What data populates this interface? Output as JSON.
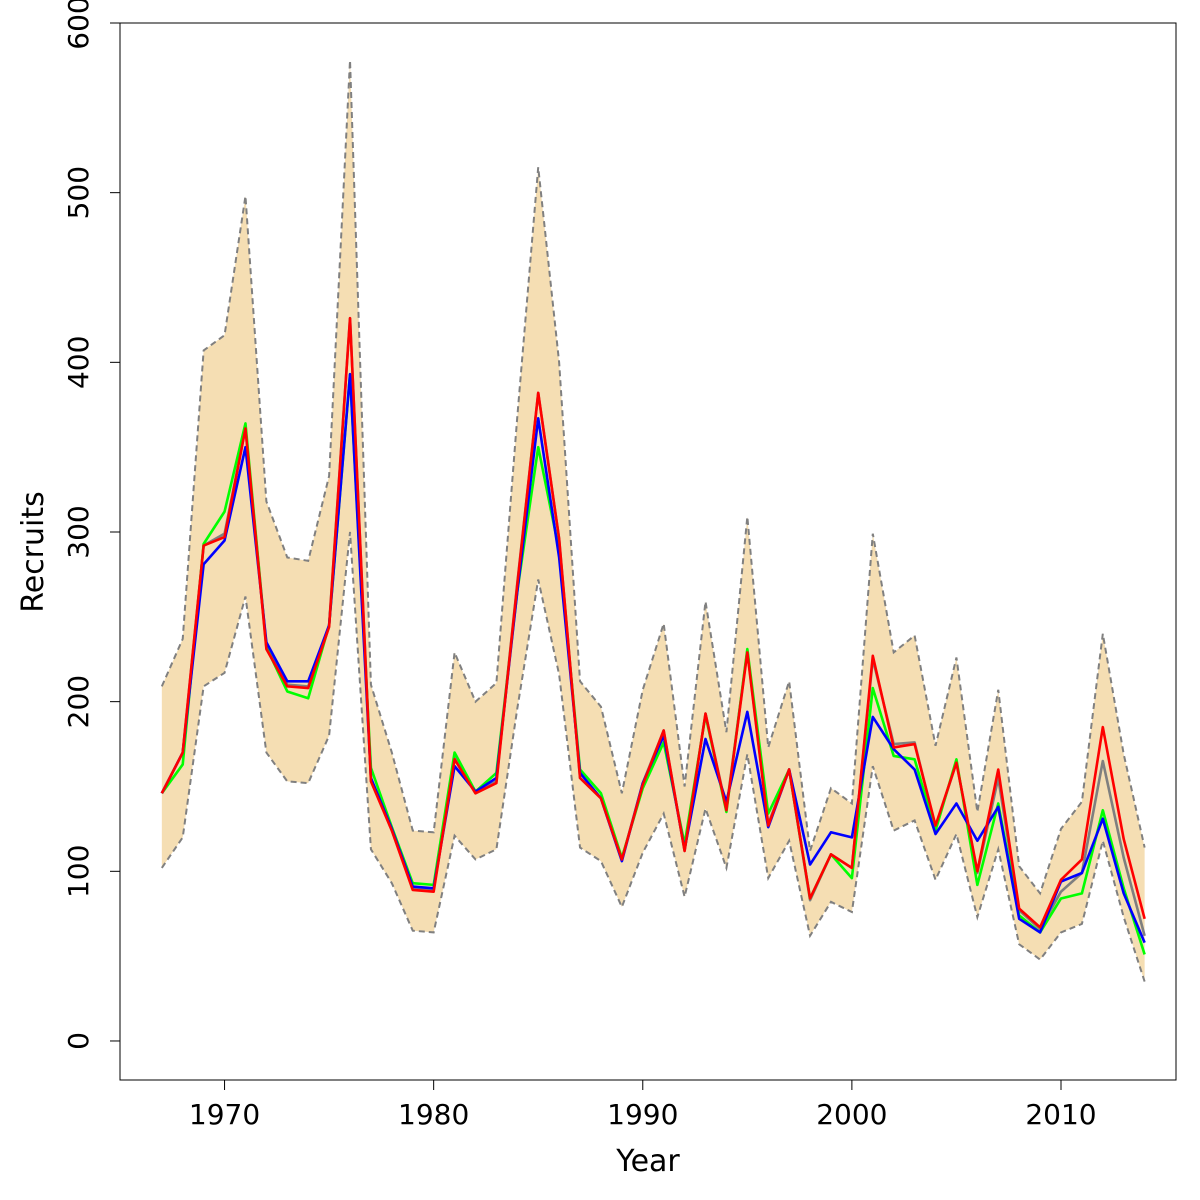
{
  "chart_data": {
    "type": "line",
    "title": "",
    "xlabel": "Year",
    "ylabel": "Recruits",
    "xlim": [
      1965,
      2015.5
    ],
    "ylim": [
      -23,
      600
    ],
    "xticks": [
      1970,
      1980,
      1990,
      2000,
      2010
    ],
    "yticks": [
      0,
      100,
      200,
      300,
      400,
      500,
      600
    ],
    "x": [
      1967,
      1968,
      1969,
      1970,
      1971,
      1972,
      1973,
      1974,
      1975,
      1976,
      1977,
      1978,
      1979,
      1980,
      1981,
      1982,
      1983,
      1984,
      1985,
      1986,
      1987,
      1988,
      1989,
      1990,
      1991,
      1992,
      1993,
      1994,
      1995,
      1996,
      1997,
      1998,
      1999,
      2000,
      2001,
      2002,
      2003,
      2004,
      2005,
      2006,
      2007,
      2008,
      2009,
      2010,
      2011,
      2012,
      2013,
      2014
    ],
    "band": {
      "name": "Confidence interval",
      "fill": "#f5deb3",
      "border": "#808080",
      "upper": [
        209,
        237,
        407,
        416,
        498,
        318,
        285,
        283,
        333,
        578,
        210,
        170,
        124,
        123,
        229,
        200,
        211,
        368,
        515,
        400,
        212,
        197,
        146,
        207,
        246,
        150,
        259,
        182,
        309,
        173,
        212,
        112,
        149,
        140,
        299,
        229,
        239,
        174,
        226,
        135,
        207,
        103,
        87,
        125,
        141,
        240,
        169,
        114
      ],
      "lower": [
        102,
        120,
        209,
        217,
        262,
        170,
        153,
        152,
        180,
        300,
        113,
        93,
        65,
        64,
        121,
        107,
        113,
        196,
        272,
        216,
        114,
        106,
        79,
        111,
        134,
        85,
        137,
        102,
        169,
        96,
        118,
        62,
        82,
        76,
        162,
        124,
        130,
        95,
        122,
        73,
        113,
        57,
        48,
        64,
        69,
        118,
        73,
        35
      ]
    },
    "series": [
      {
        "name": "gray",
        "color": "#7f7f7f",
        "values": [
          146,
          170,
          292,
          299,
          361,
          233,
          210,
          209,
          245,
          426,
          154,
          124,
          90,
          89,
          167,
          146,
          153,
          270,
          382,
          296,
          155,
          143,
          107,
          152,
          183,
          112,
          193,
          137,
          230,
          128,
          160,
          83,
          110,
          102,
          225,
          175,
          176,
          126,
          164,
          99,
          155,
          77,
          66,
          88,
          99,
          165,
          108,
          62
        ]
      },
      {
        "name": "green",
        "color": "#00ff00",
        "values": [
          146,
          163,
          293,
          312,
          364,
          232,
          206,
          202,
          245,
          393,
          161,
          126,
          93,
          92,
          170,
          147,
          158,
          265,
          350,
          289,
          160,
          146,
          108,
          149,
          176,
          116,
          192,
          135,
          231,
          134,
          160,
          84,
          110,
          96,
          208,
          168,
          166,
          124,
          166,
          92,
          140,
          74,
          64,
          84,
          87,
          136,
          90,
          51
        ]
      },
      {
        "name": "blue",
        "color": "#0000ff",
        "values": [
          146,
          170,
          281,
          295,
          350,
          235,
          212,
          212,
          245,
          393,
          155,
          125,
          91,
          90,
          162,
          147,
          155,
          265,
          367,
          285,
          158,
          143,
          106,
          152,
          180,
          113,
          178,
          141,
          194,
          126,
          160,
          104,
          123,
          120,
          191,
          172,
          160,
          122,
          140,
          118,
          138,
          72,
          64,
          94,
          99,
          131,
          87,
          58
        ]
      },
      {
        "name": "red",
        "color": "#ff0000",
        "values": [
          146,
          170,
          292,
          297,
          361,
          231,
          209,
          208,
          244,
          426,
          153,
          124,
          89,
          88,
          166,
          146,
          152,
          269,
          382,
          296,
          155,
          143,
          107,
          151,
          183,
          112,
          193,
          136,
          229,
          127,
          160,
          84,
          110,
          102,
          227,
          173,
          175,
          127,
          164,
          100,
          160,
          78,
          67,
          95,
          107,
          185,
          119,
          72
        ]
      }
    ]
  }
}
